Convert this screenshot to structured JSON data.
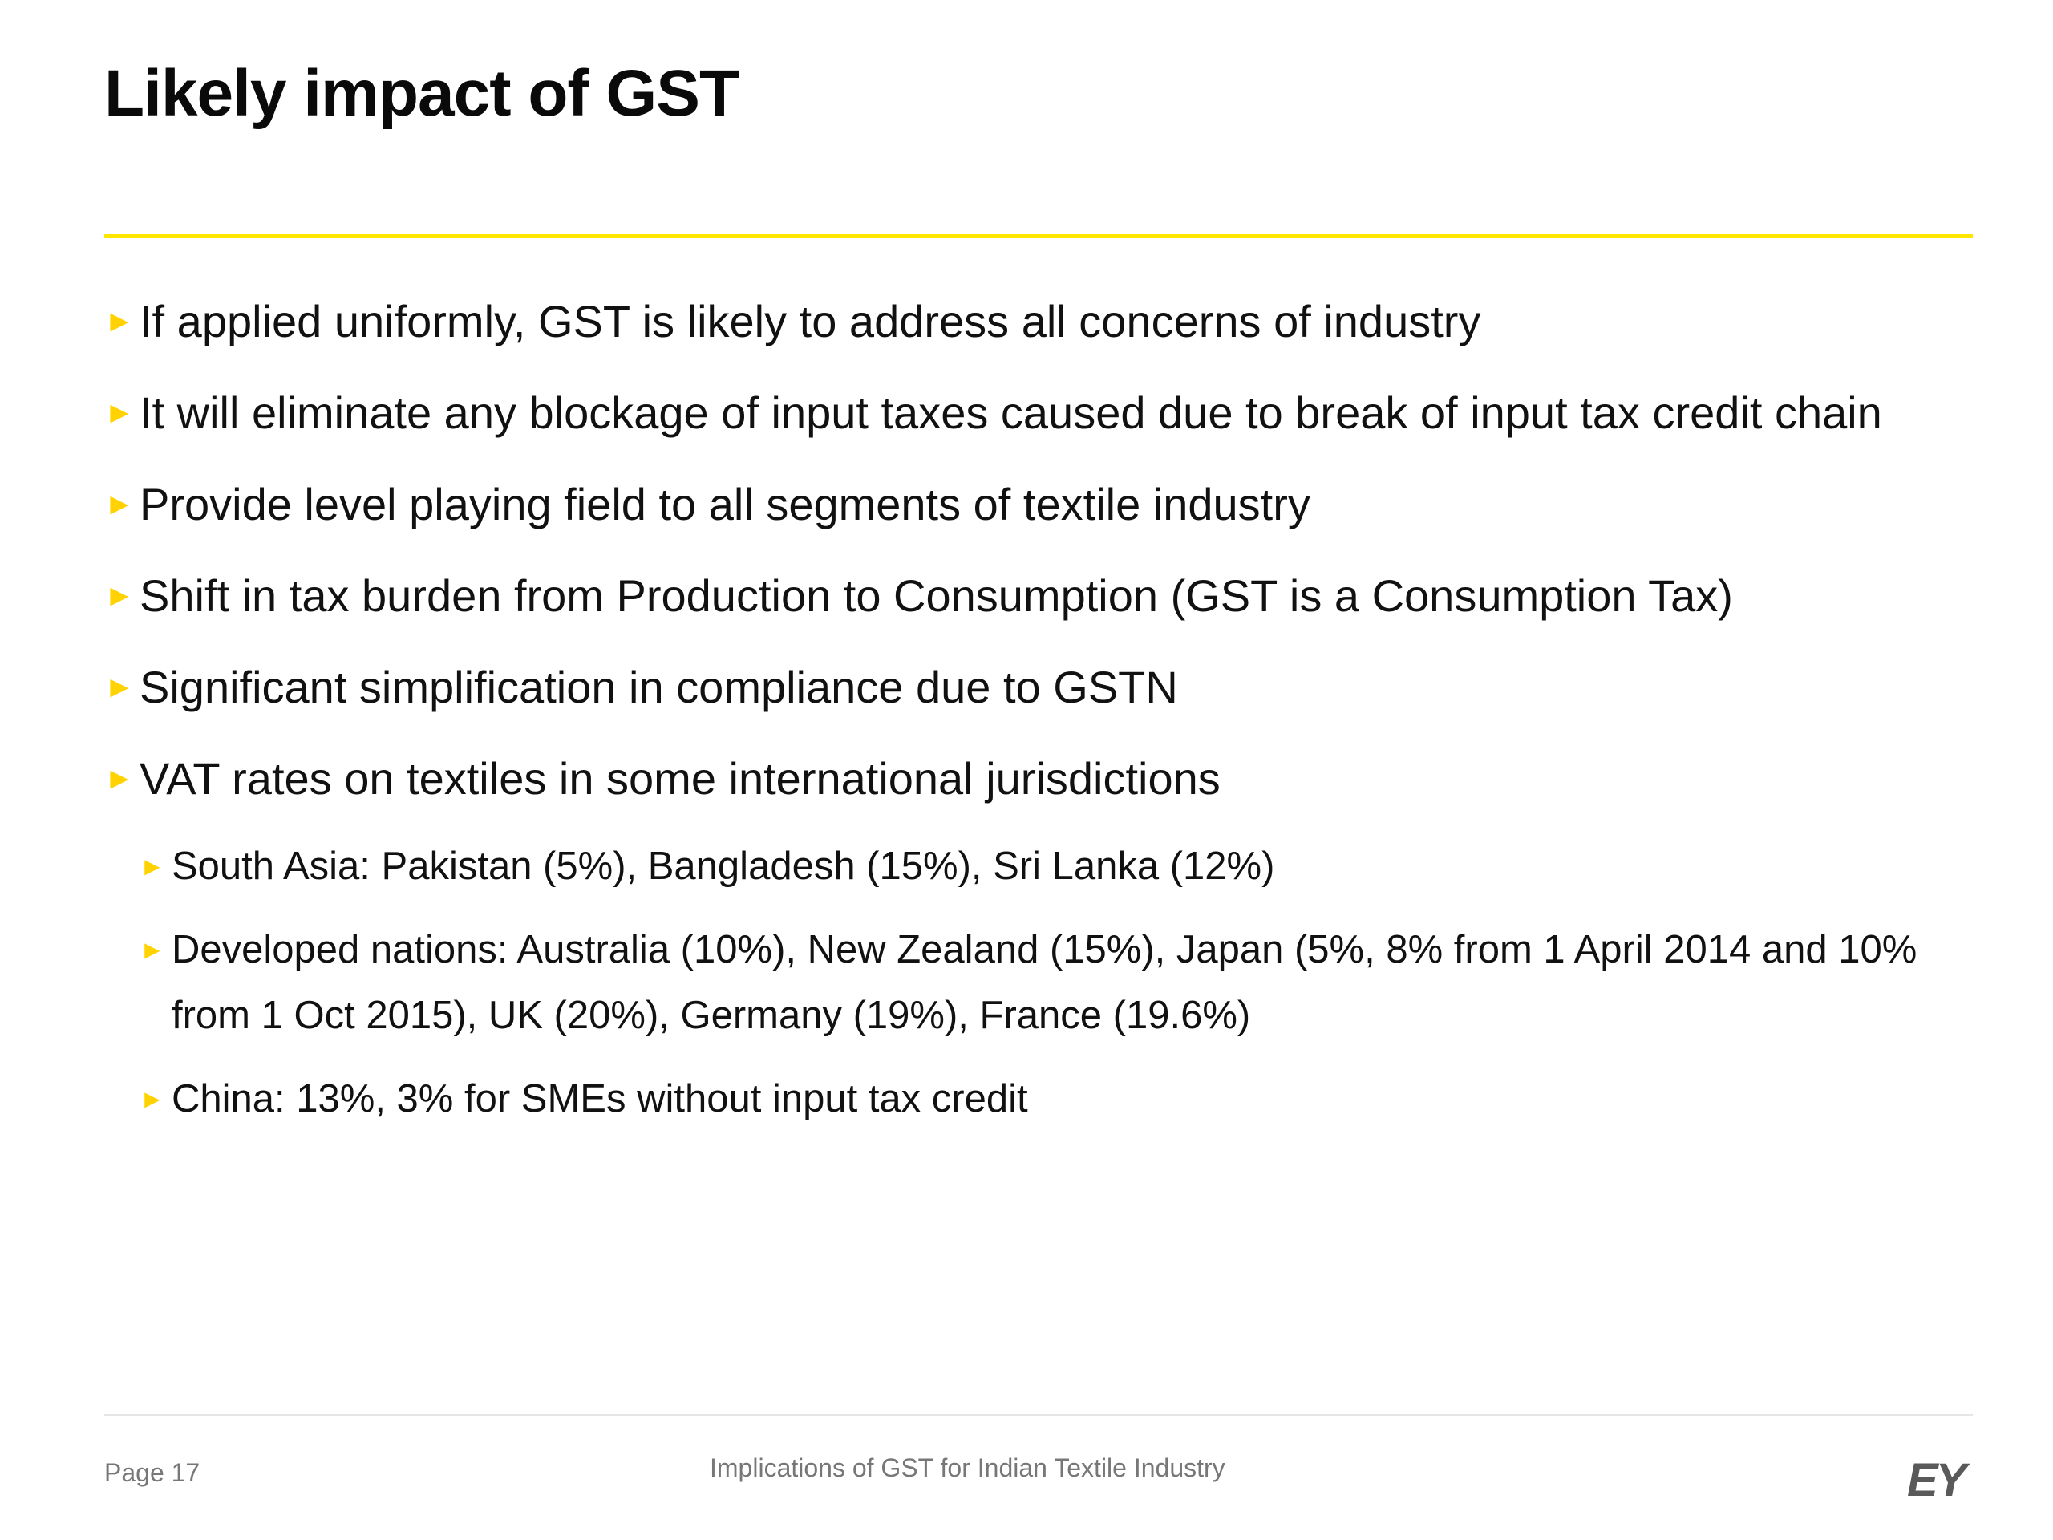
{
  "slide": {
    "title": "Likely impact of GST",
    "accent_color": "#ffe600",
    "bullet_icon": "yellow-triangle-right-icon",
    "bullets": [
      {
        "text": "If applied uniformly, GST is likely to address all concerns of industry"
      },
      {
        "text": "It will eliminate any blockage of input taxes caused due to break of input tax credit chain"
      },
      {
        "text": "Provide level playing field to all segments of textile industry"
      },
      {
        "text": "Shift in tax burden from Production to Consumption (GST is a Consumption Tax)"
      },
      {
        "text": "Significant simplification in compliance due to GSTN"
      },
      {
        "text": "VAT rates on textiles in some international jurisdictions"
      }
    ],
    "sub_bullets": [
      {
        "text": "South Asia: Pakistan (5%), Bangladesh (15%), Sri Lanka (12%)"
      },
      {
        "text": "Developed nations: Australia (10%), New Zealand (15%), Japan (5%, 8% from 1 April 2014 and 10% from 1 Oct 2015), UK (20%), Germany (19%), France (19.6%)"
      },
      {
        "text": "China: 13%, 3% for SMEs without input tax credit"
      }
    ]
  },
  "footer": {
    "page": "Page 17",
    "title": "Implications of GST for Indian Textile Industry",
    "logo": "EY"
  }
}
